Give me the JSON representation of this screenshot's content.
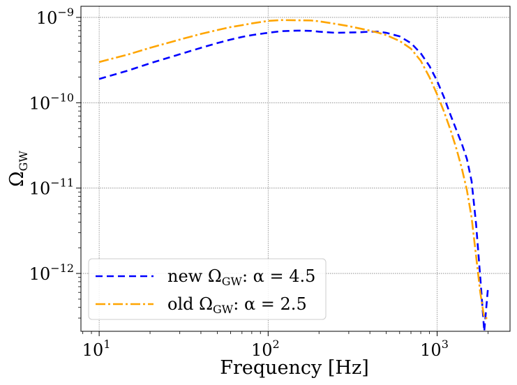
{
  "chart_data": {
    "type": "line",
    "xlabel": "Frequency [Hz]",
    "ylabel_main": "Ω",
    "ylabel_sub": "GW",
    "xscale": "log",
    "yscale": "log",
    "xlim": [
      7.8,
      2700
    ],
    "ylim": [
      2.1e-13,
      1.35e-09
    ],
    "grid": true,
    "legend_position": "lower-left",
    "x_ticks": [
      {
        "value": 10,
        "base": "10",
        "exp": "1"
      },
      {
        "value": 100,
        "base": "10",
        "exp": "2"
      },
      {
        "value": 1000,
        "base": "10",
        "exp": "3"
      }
    ],
    "y_ticks": [
      {
        "value": 1e-12,
        "base": "10",
        "exp": "−12"
      },
      {
        "value": 1e-11,
        "base": "10",
        "exp": "−11"
      },
      {
        "value": 1e-10,
        "base": "10",
        "exp": "−10"
      },
      {
        "value": 1e-09,
        "base": "10",
        "exp": "−9"
      }
    ],
    "series": [
      {
        "name": "new ΩGW: α = 4.5",
        "legend_pre": "new Ω",
        "legend_sub": "GW",
        "legend_post": ": α = 4.5",
        "color": "#0000ff",
        "dash": "10,6",
        "x": [
          10,
          15,
          20,
          30,
          40,
          50,
          60,
          70,
          80,
          100,
          120,
          150,
          180,
          200,
          250,
          300,
          350,
          400,
          450,
          500,
          600,
          700,
          800,
          900,
          1000,
          1100,
          1200,
          1300,
          1400,
          1500,
          1600,
          1700,
          1800,
          1900,
          2000
        ],
        "y": [
          1.9e-10,
          2.4e-10,
          2.9e-10,
          3.7e-10,
          4.4e-10,
          5e-10,
          5.5e-10,
          5.9e-10,
          6.2e-10,
          6.6e-10,
          6.9e-10,
          7e-10,
          6.95e-10,
          6.8e-10,
          6.6e-10,
          6.65e-10,
          6.7e-10,
          6.8e-10,
          6.8e-10,
          6.6e-10,
          6e-10,
          5e-10,
          3.8e-10,
          2.7e-10,
          1.8e-10,
          1.15e-10,
          7.2e-11,
          4.8e-11,
          3.3e-11,
          2.2e-11,
          1.2e-11,
          3.8e-12,
          9e-13,
          2.1e-13,
          6.8e-13
        ]
      },
      {
        "name": "old ΩGW: α = 2.5",
        "legend_pre": "old Ω",
        "legend_sub": "GW",
        "legend_post": ": α = 2.5",
        "color": "#ffa500",
        "dash": "14,4,3,4",
        "x": [
          10,
          15,
          20,
          30,
          40,
          50,
          60,
          70,
          80,
          100,
          120,
          150,
          180,
          200,
          250,
          300,
          350,
          400,
          450,
          500,
          600,
          700,
          800,
          900,
          1000,
          1100,
          1200,
          1300,
          1400,
          1500,
          1600,
          1700,
          1800,
          1900,
          2000
        ],
        "y": [
          3e-10,
          3.7e-10,
          4.4e-10,
          5.5e-10,
          6.4e-10,
          7.1e-10,
          7.7e-10,
          8.1e-10,
          8.5e-10,
          9.1e-10,
          9.3e-10,
          9.25e-10,
          9.2e-10,
          9e-10,
          8.4e-10,
          7.9e-10,
          7.4e-10,
          7e-10,
          6.6e-10,
          6.2e-10,
          5.3e-10,
          4.3e-10,
          3.1e-10,
          2e-10,
          1.25e-10,
          7.8e-11,
          4.8e-11,
          2.9e-11,
          1.7e-11,
          9.5e-12,
          4.5e-12,
          1.6e-12,
          6e-13,
          3e-13,
          3e-13
        ]
      }
    ]
  }
}
